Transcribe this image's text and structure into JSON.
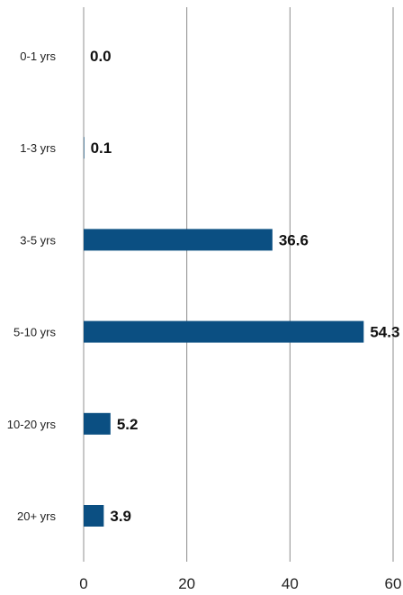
{
  "chart_data": {
    "type": "bar",
    "orientation": "horizontal",
    "categories": [
      "0-1 yrs",
      "1-3 yrs",
      "3-5 yrs",
      "5-10 yrs",
      "10-20 yrs",
      "20+ yrs"
    ],
    "values": [
      0.0,
      0.1,
      36.6,
      54.3,
      5.2,
      3.9
    ],
    "value_labels": [
      "0.0",
      "0.1",
      "36.6",
      "54.3",
      "5.2",
      "3.9"
    ],
    "x_ticks": [
      "0",
      "20",
      "40",
      "60"
    ],
    "xlim": [
      0,
      60
    ],
    "grid": true,
    "bar_color": "#0b4f82",
    "title": "",
    "xlabel": "",
    "ylabel": ""
  }
}
